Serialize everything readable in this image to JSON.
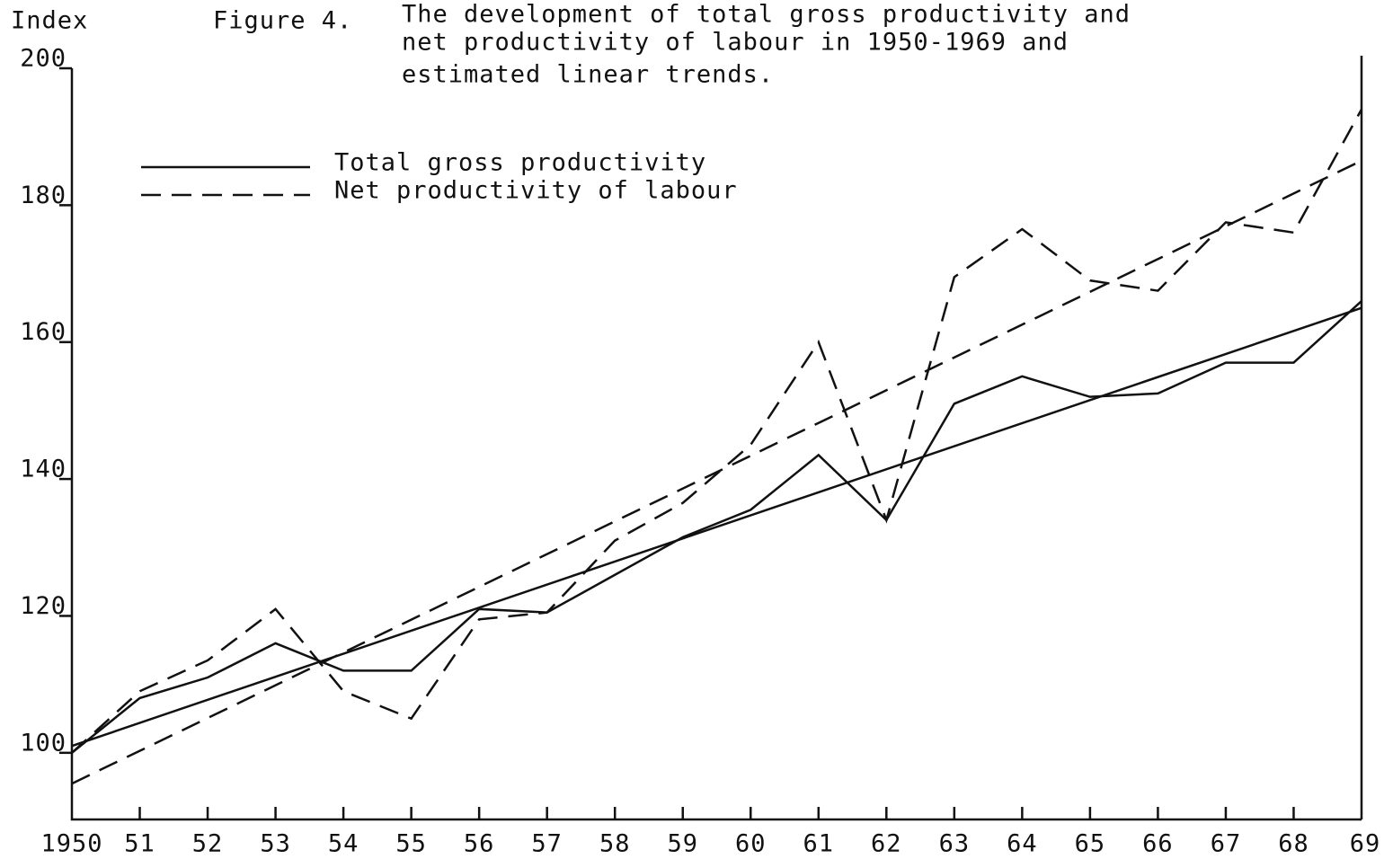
{
  "chart_data": {
    "type": "line",
    "figure_label": "Figure 4.",
    "title": [
      "The development of total gross productivity and",
      "net productivity of labour in 1950-1969 and",
      "estimated linear trends."
    ],
    "ylabel": "Index",
    "categories": [
      "1950",
      "51",
      "52",
      "53",
      "54",
      "55",
      "56",
      "57",
      "58",
      "59",
      "60",
      "61",
      "62",
      "63",
      "64",
      "65",
      "66",
      "67",
      "68",
      "69"
    ],
    "series": [
      {
        "name": "Total gross productivity",
        "color": "#111111",
        "dash": false,
        "values": [
          100,
          108,
          111,
          116,
          112,
          112,
          121,
          120.5,
          126,
          131.5,
          135.5,
          143.5,
          134,
          151,
          155,
          152,
          152.5,
          157,
          157,
          166
        ],
        "trend": [
          101,
          165
        ]
      },
      {
        "name": "Net productivity of labour",
        "color": "#111111",
        "dash": true,
        "values": [
          100,
          109,
          113.5,
          121,
          109,
          105,
          119.5,
          120.5,
          131,
          136.5,
          145,
          160,
          134,
          169.5,
          176.5,
          169,
          167.5,
          177.5,
          176,
          194
        ],
        "trend": [
          95.5,
          186.5
        ]
      }
    ],
    "ylim": [
      90,
      200
    ],
    "yticks": [
      100,
      120,
      140,
      160,
      180,
      200
    ],
    "legend": "upper left"
  }
}
